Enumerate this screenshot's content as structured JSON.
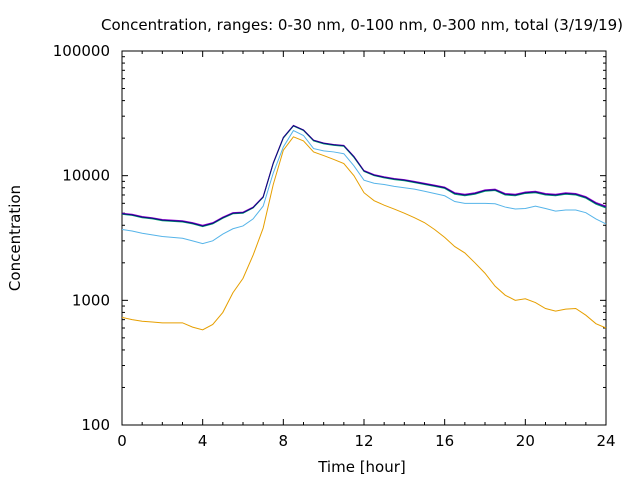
{
  "chart_data": {
    "type": "line",
    "title": "Concentration, ranges: 0-30 nm, 0-100 nm, 0-300 nm, total (3/19/19)",
    "xlabel": "Time [hour]",
    "ylabel": "Concentration",
    "xlim": [
      0,
      24
    ],
    "ylim": [
      100,
      100000
    ],
    "yscale": "log",
    "grid": false,
    "x_ticks": [
      0,
      4,
      8,
      12,
      16,
      20,
      24
    ],
    "x_tick_labels": [
      "0",
      "4",
      "8",
      "12",
      "16",
      "20",
      "24"
    ],
    "y_ticks": [
      100,
      1000,
      10000,
      100000
    ],
    "y_tick_labels": [
      "100",
      "1000",
      "10000",
      "100000"
    ],
    "x": [
      0,
      0.5,
      1,
      1.5,
      2,
      2.5,
      3,
      3.5,
      4,
      4.5,
      5,
      5.5,
      6,
      6.5,
      7,
      7.5,
      8,
      8.5,
      9,
      9.5,
      10,
      10.5,
      11,
      11.5,
      12,
      12.5,
      13,
      13.5,
      14,
      14.5,
      15,
      15.5,
      16,
      16.5,
      17,
      17.5,
      18,
      18.5,
      19,
      19.5,
      20,
      20.5,
      21,
      21.5,
      22,
      22.5,
      23,
      23.5,
      24
    ],
    "series": [
      {
        "color": "#e69f00",
        "values": [
          730,
          700,
          680,
          670,
          660,
          660,
          660,
          610,
          580,
          640,
          800,
          1150,
          1500,
          2300,
          3800,
          8500,
          16000,
          20500,
          19000,
          15500,
          14500,
          13500,
          12500,
          10000,
          7300,
          6300,
          5800,
          5400,
          5000,
          4600,
          4200,
          3700,
          3200,
          2700,
          2400,
          2000,
          1650,
          1300,
          1100,
          1000,
          1030,
          960,
          860,
          820,
          850,
          860,
          760,
          650,
          600
        ]
      },
      {
        "color": "#56b4e9",
        "values": [
          3700,
          3600,
          3450,
          3350,
          3250,
          3200,
          3150,
          3000,
          2850,
          3000,
          3400,
          3750,
          3950,
          4500,
          5700,
          10500,
          17000,
          23000,
          21000,
          16500,
          15800,
          15500,
          15000,
          12000,
          9200,
          8700,
          8500,
          8200,
          8000,
          7800,
          7500,
          7200,
          6900,
          6200,
          6000,
          6000,
          6000,
          5950,
          5600,
          5400,
          5450,
          5700,
          5450,
          5200,
          5300,
          5300,
          5050,
          4500,
          4100
        ]
      },
      {
        "color": "#009e73",
        "values": [
          4900,
          4800,
          4600,
          4500,
          4350,
          4300,
          4250,
          4100,
          3900,
          4100,
          4550,
          4950,
          5000,
          5500,
          6700,
          12500,
          20000,
          25000,
          23000,
          19000,
          18000,
          17500,
          17200,
          14000,
          10800,
          10000,
          9600,
          9300,
          9100,
          8800,
          8500,
          8200,
          7900,
          7100,
          6900,
          7100,
          7500,
          7600,
          7000,
          6900,
          7200,
          7300,
          7000,
          6900,
          7100,
          7000,
          6600,
          5900,
          5500
        ]
      },
      {
        "color": "#9400d3",
        "values": [
          5000,
          4900,
          4700,
          4600,
          4450,
          4400,
          4350,
          4200,
          4000,
          4200,
          4650,
          5050,
          5100,
          5600,
          6800,
          12700,
          20300,
          25300,
          23300,
          19300,
          18300,
          17800,
          17500,
          14300,
          11000,
          10200,
          9800,
          9500,
          9300,
          9000,
          8700,
          8400,
          8100,
          7300,
          7100,
          7300,
          7700,
          7800,
          7200,
          7100,
          7400,
          7500,
          7200,
          7100,
          7300,
          7200,
          6800,
          6100,
          5700
        ]
      },
      {
        "color": "#0c0c7a",
        "values": [
          4950,
          4850,
          4650,
          4550,
          4400,
          4350,
          4300,
          4150,
          3950,
          4150,
          4600,
          5000,
          5050,
          5550,
          6750,
          12600,
          20200,
          25200,
          23200,
          19200,
          18200,
          17700,
          17400,
          14200,
          10900,
          10100,
          9700,
          9400,
          9200,
          8900,
          8600,
          8300,
          8000,
          7200,
          7000,
          7200,
          7600,
          7700,
          7100,
          7000,
          7300,
          7400,
          7100,
          7000,
          7200,
          7100,
          6700,
          6000,
          5600
        ]
      }
    ]
  }
}
